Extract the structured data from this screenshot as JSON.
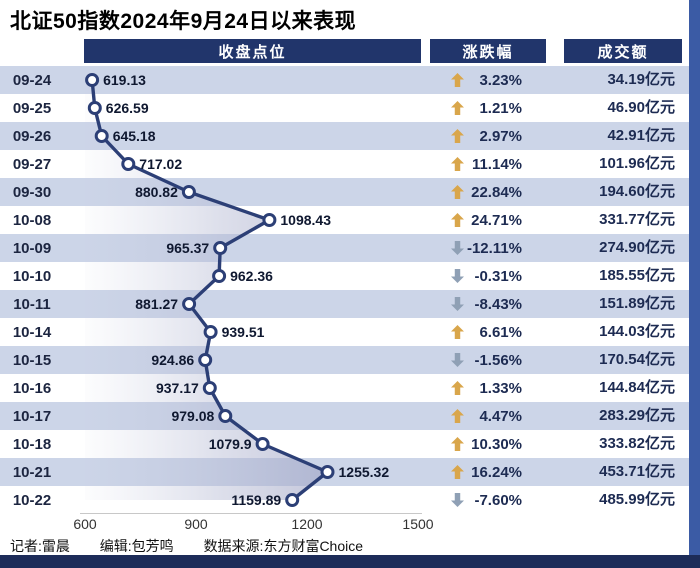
{
  "title": "北证50指数2024年9月24日以来表现",
  "columns": {
    "close": "收盘点位",
    "change": "涨跌幅",
    "turnover": "成交额"
  },
  "footer": {
    "reporter": "记者:雷晨",
    "editor": "编辑:包芳鸣",
    "source": "数据来源:东方财富Choice"
  },
  "colors": {
    "navy": "#21356b",
    "row_alt": "#ccd5e8",
    "line": "#2c3f76",
    "up": "#d9a64b",
    "down": "#8fa0b5",
    "stripe": "#3b5ba5",
    "bottom_bar": "#1d2c59"
  },
  "chart_data": {
    "type": "line",
    "title": "北证50指数2024年9月24日以来表现",
    "orientation": "vertical-time-axis",
    "categories": [
      "09-24",
      "09-25",
      "09-26",
      "09-27",
      "09-30",
      "10-08",
      "10-09",
      "10-10",
      "10-11",
      "10-14",
      "10-15",
      "10-16",
      "10-17",
      "10-18",
      "10-21",
      "10-22"
    ],
    "series": [
      {
        "name": "收盘点位",
        "values": [
          619.13,
          626.59,
          645.18,
          717.02,
          880.82,
          1098.43,
          965.37,
          962.36,
          881.27,
          939.51,
          924.86,
          937.17,
          979.08,
          1079.9,
          1255.32,
          1159.89
        ]
      }
    ],
    "value_labels": [
      "619.13",
      "626.59",
      "645.18",
      "717.02",
      "880.82",
      "1098.43",
      "965.37",
      "962.36",
      "881.27",
      "939.51",
      "924.86",
      "937.17",
      "979.08",
      "1079.9",
      "1255.32",
      "1159.89"
    ],
    "value_label_sides": [
      "right",
      "right",
      "right",
      "right",
      "left",
      "right",
      "left",
      "right",
      "left",
      "right",
      "left",
      "left",
      "left",
      "left",
      "right",
      "left"
    ],
    "change_pct": [
      3.23,
      1.21,
      2.97,
      11.14,
      22.84,
      24.71,
      -12.11,
      -0.31,
      -8.43,
      6.61,
      -1.56,
      1.33,
      4.47,
      10.3,
      16.24,
      -7.6
    ],
    "change_pct_labels": [
      "3.23%",
      "1.21%",
      "2.97%",
      "11.14%",
      "22.84%",
      "24.71%",
      "-12.11%",
      "-0.31%",
      "-8.43%",
      "6.61%",
      "-1.56%",
      "1.33%",
      "4.47%",
      "10.30%",
      "16.24%",
      "-7.60%"
    ],
    "turnover": [
      34.19,
      46.9,
      42.91,
      101.96,
      194.6,
      331.77,
      274.9,
      185.55,
      151.89,
      144.03,
      170.54,
      144.84,
      283.29,
      333.82,
      453.71,
      485.99
    ],
    "turnover_unit": "亿元",
    "turnover_labels": [
      "34.19亿元",
      "46.90亿元",
      "42.91亿元",
      "101.96亿元",
      "194.60亿元",
      "331.77亿元",
      "274.90亿元",
      "185.55亿元",
      "151.89亿元",
      "144.03亿元",
      "170.54亿元",
      "144.84亿元",
      "283.29亿元",
      "333.82亿元",
      "453.71亿元",
      "485.99亿元"
    ],
    "xlim": [
      600,
      1500
    ],
    "x_ticks": [
      "600",
      "900",
      "1200",
      "1500"
    ],
    "legend": "none",
    "grid": false
  }
}
